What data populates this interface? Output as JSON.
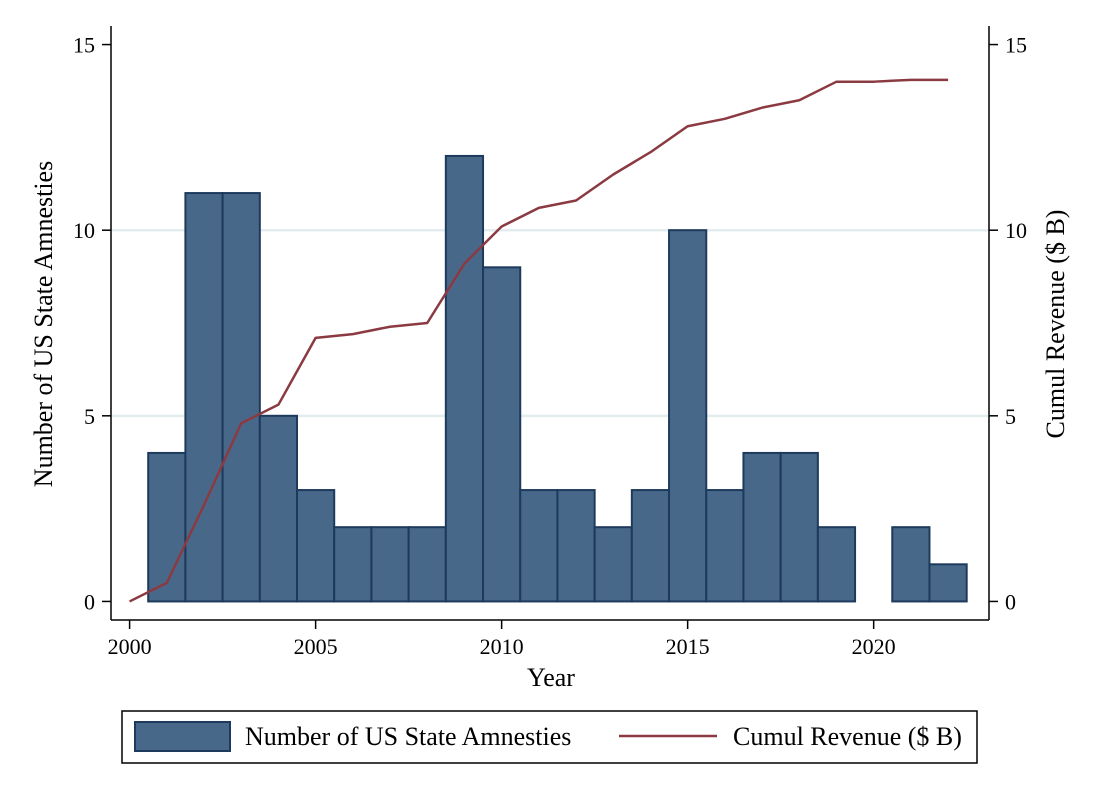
{
  "chart_data": {
    "type": "bar",
    "title": "",
    "xlabel": "Year",
    "ylabel_left": "Number of US State Amnesties",
    "ylabel_right": "Cumul Revenue ($ B)",
    "xlim": [
      1999.5,
      2023.1
    ],
    "ylim_left": [
      -0.5,
      15.5
    ],
    "ylim_right": [
      -0.5,
      15.5
    ],
    "x_ticks": [
      2000,
      2005,
      2010,
      2015,
      2020
    ],
    "y_ticks_left": [
      0,
      5,
      10,
      15
    ],
    "y_ticks_right": [
      0,
      5,
      10,
      15
    ],
    "gridlines": [
      5,
      10
    ],
    "series": [
      {
        "name": "Number of US State Amnesties",
        "type": "bar",
        "axis": "left",
        "color": "#48688a",
        "edge_color": "#1d3a5c",
        "x": [
          2001,
          2002,
          2003,
          2004,
          2005,
          2006,
          2007,
          2008,
          2009,
          2010,
          2011,
          2012,
          2013,
          2014,
          2015,
          2016,
          2017,
          2018,
          2019,
          2021,
          2022
        ],
        "values": [
          4,
          11,
          11,
          5,
          3,
          2,
          2,
          2,
          12,
          9,
          3,
          3,
          2,
          3,
          10,
          3,
          4,
          4,
          2,
          2,
          1
        ]
      },
      {
        "name": "Cumul Revenue ($ B)",
        "type": "line",
        "axis": "right",
        "color": "#8b3a42",
        "x": [
          2000,
          2001,
          2002,
          2003,
          2004,
          2005,
          2006,
          2007,
          2008,
          2009,
          2010,
          2011,
          2012,
          2013,
          2014,
          2015,
          2016,
          2017,
          2018,
          2019,
          2020,
          2021,
          2022
        ],
        "values": [
          0,
          0.5,
          2.6,
          4.8,
          5.3,
          7.1,
          7.2,
          7.4,
          7.5,
          9.1,
          10.1,
          10.6,
          10.8,
          11.5,
          12.1,
          12.8,
          13.0,
          13.3,
          13.5,
          14.0,
          14.0,
          14.05,
          14.05
        ]
      }
    ],
    "legend": {
      "position": "bottom",
      "entries": [
        "Number of US State Amnesties",
        "Cumul Revenue ($ B)"
      ]
    },
    "colors": {
      "bar_fill": "#48688a",
      "bar_edge": "#1d3a5c",
      "line": "#8b3a42",
      "grid": "#e3ecee",
      "axis": "#000000"
    }
  }
}
